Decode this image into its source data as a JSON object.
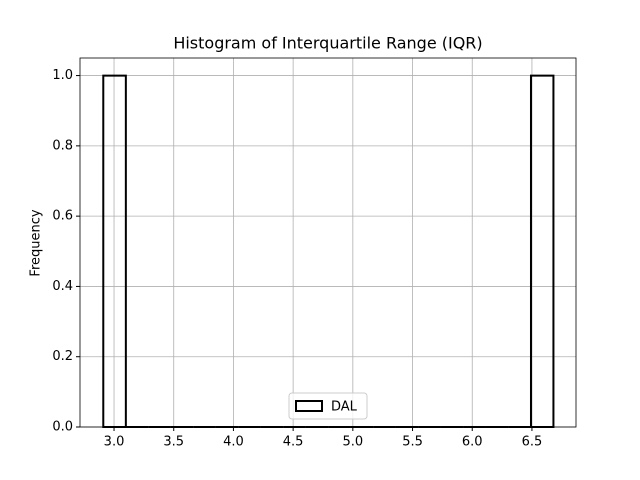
{
  "chart_data": {
    "type": "histogram",
    "title": "Histogram of Interquartile Range (IQR)",
    "ylabel": "Frequency",
    "bins": [
      2.91,
      3.099,
      3.287,
      3.476,
      3.664,
      3.853,
      4.041,
      4.23,
      4.418,
      4.607,
      4.795,
      4.984,
      5.172,
      5.361,
      5.549,
      5.738,
      5.926,
      6.115,
      6.303,
      6.492,
      6.68
    ],
    "series": [
      {
        "name": "DAL",
        "color": "#000000",
        "values": [
          1,
          0,
          0,
          0,
          0,
          0,
          0,
          0,
          0,
          0,
          0,
          0,
          0,
          0,
          0,
          0,
          0,
          0,
          0,
          1
        ]
      }
    ],
    "xlim": [
      2.715,
      6.869
    ],
    "xticks": [
      {
        "value": 3.0,
        "label": "3.0"
      },
      3.5,
      {
        "value": 4.0,
        "label": "4.0"
      },
      4.5,
      {
        "value": 5.0,
        "label": "5.0"
      },
      5.5,
      {
        "value": 6.0,
        "label": "6.0"
      },
      6.5
    ],
    "ylim": [
      0,
      1.05
    ],
    "yticks": [
      {
        "value": 0,
        "label": "0.0"
      },
      0.2,
      0.4,
      0.6,
      0.8,
      {
        "value": 1,
        "label": "1.0"
      }
    ],
    "grid": true,
    "legend": "lower center"
  }
}
